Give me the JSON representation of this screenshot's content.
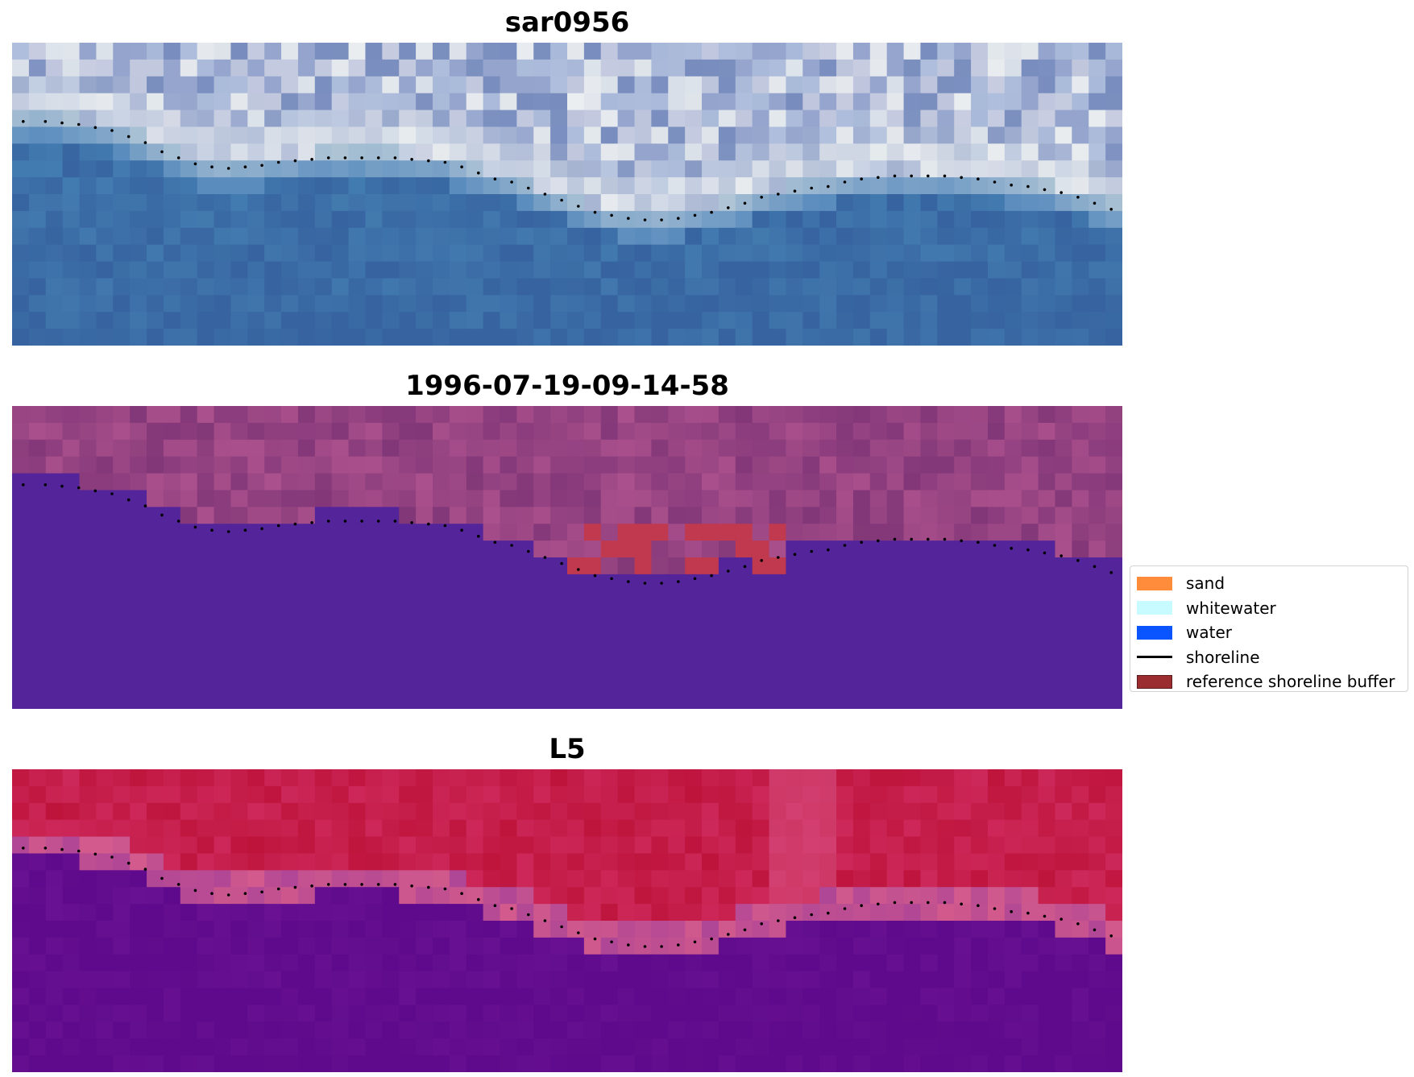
{
  "panels": [
    {
      "title": "sar0956",
      "style": "rgb"
    },
    {
      "title": "1996-07-19-09-14-58",
      "style": "classified"
    },
    {
      "title": "L5",
      "style": "ndwi"
    }
  ],
  "legend": {
    "items": [
      {
        "label": "sand",
        "color": "#ff8c3a",
        "kind": "patch"
      },
      {
        "label": "whitewater",
        "color": "#c8fbff",
        "kind": "patch"
      },
      {
        "label": "water",
        "color": "#0a55ff",
        "kind": "patch"
      },
      {
        "label": "shoreline",
        "color": "#000000",
        "kind": "line"
      },
      {
        "label": "reference shoreline buffer",
        "color": "#9b2d30",
        "kind": "patch"
      }
    ]
  },
  "colors": {
    "classified_water": "#53249a",
    "buffer_red": "#c0394f",
    "shoreline_dots": "#000000"
  },
  "shoreline_dots": [
    [
      0.01,
      0.26
    ],
    [
      0.03,
      0.26
    ],
    [
      0.045,
      0.265
    ],
    [
      0.06,
      0.27
    ],
    [
      0.075,
      0.28
    ],
    [
      0.09,
      0.29
    ],
    [
      0.105,
      0.31
    ],
    [
      0.12,
      0.33
    ],
    [
      0.135,
      0.36
    ],
    [
      0.15,
      0.38
    ],
    [
      0.165,
      0.4
    ],
    [
      0.18,
      0.41
    ],
    [
      0.195,
      0.415
    ],
    [
      0.21,
      0.41
    ],
    [
      0.225,
      0.405
    ],
    [
      0.24,
      0.395
    ],
    [
      0.255,
      0.39
    ],
    [
      0.27,
      0.385
    ],
    [
      0.285,
      0.38
    ],
    [
      0.3,
      0.38
    ],
    [
      0.315,
      0.38
    ],
    [
      0.33,
      0.38
    ],
    [
      0.345,
      0.38
    ],
    [
      0.36,
      0.385
    ],
    [
      0.375,
      0.39
    ],
    [
      0.39,
      0.395
    ],
    [
      0.405,
      0.41
    ],
    [
      0.42,
      0.43
    ],
    [
      0.435,
      0.45
    ],
    [
      0.45,
      0.46
    ],
    [
      0.465,
      0.48
    ],
    [
      0.48,
      0.5
    ],
    [
      0.495,
      0.52
    ],
    [
      0.51,
      0.54
    ],
    [
      0.525,
      0.56
    ],
    [
      0.54,
      0.57
    ],
    [
      0.555,
      0.58
    ],
    [
      0.57,
      0.585
    ],
    [
      0.585,
      0.585
    ],
    [
      0.6,
      0.58
    ],
    [
      0.615,
      0.57
    ],
    [
      0.63,
      0.56
    ],
    [
      0.645,
      0.545
    ],
    [
      0.66,
      0.53
    ],
    [
      0.675,
      0.51
    ],
    [
      0.69,
      0.5
    ],
    [
      0.705,
      0.49
    ],
    [
      0.72,
      0.48
    ],
    [
      0.735,
      0.475
    ],
    [
      0.75,
      0.46
    ],
    [
      0.765,
      0.45
    ],
    [
      0.78,
      0.445
    ],
    [
      0.795,
      0.44
    ],
    [
      0.81,
      0.44
    ],
    [
      0.825,
      0.44
    ],
    [
      0.84,
      0.44
    ],
    [
      0.855,
      0.445
    ],
    [
      0.87,
      0.45
    ],
    [
      0.885,
      0.46
    ],
    [
      0.9,
      0.47
    ],
    [
      0.915,
      0.475
    ],
    [
      0.93,
      0.485
    ],
    [
      0.945,
      0.495
    ],
    [
      0.96,
      0.51
    ],
    [
      0.975,
      0.53
    ],
    [
      0.99,
      0.55
    ]
  ]
}
